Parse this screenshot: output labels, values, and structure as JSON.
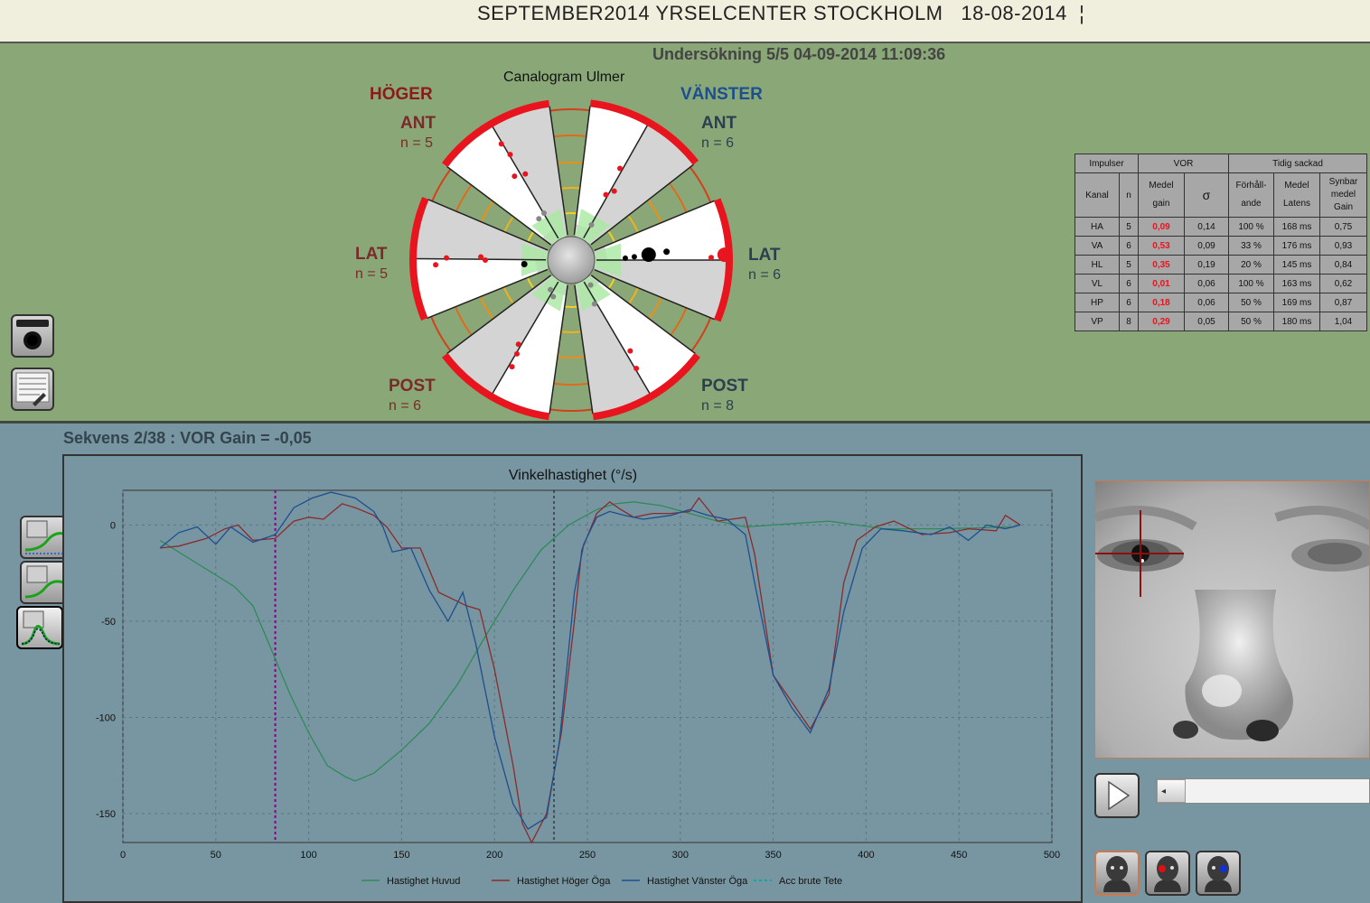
{
  "title_bar": {
    "text": "SEPTEMBER2014 YRSELCENTER STOCKHOLM   18-08-2014  ¦"
  },
  "exam": {
    "text": "Undersökning 5/5 04-09-2014 11:09:36"
  },
  "canalogram": {
    "title": "Canalogram Ulmer",
    "right_side": "HÖGER",
    "left_side": "VÄNSTER",
    "sectors": {
      "right_ant": {
        "label": "ANT",
        "n": "n = 5"
      },
      "right_lat": {
        "label": "LAT",
        "n": "n = 5"
      },
      "right_post": {
        "label": "POST",
        "n": "n = 6"
      },
      "left_ant": {
        "label": "ANT",
        "n": "n = 6"
      },
      "left_lat": {
        "label": "LAT",
        "n": "n = 6"
      },
      "left_post": {
        "label": "POST",
        "n": "n = 8"
      }
    }
  },
  "stats_table": {
    "group_headers": [
      "Impulser",
      "VOR",
      "Tidig sackad"
    ],
    "headers": {
      "kanal": "Kanal",
      "n": "n",
      "medel_gain": "Medel gain",
      "sigma": "σ",
      "forhallande": "Förhåll- ande",
      "latens": "Medel Latens",
      "synbar": "Synbar medel Gain"
    },
    "rows": [
      [
        "HA",
        "5",
        "0,09",
        "0,14",
        "100 %",
        "168 ms",
        "0,75"
      ],
      [
        "VA",
        "6",
        "0,53",
        "0,09",
        "33 %",
        "176 ms",
        "0,93"
      ],
      [
        "HL",
        "5",
        "0,35",
        "0,19",
        "20 %",
        "145 ms",
        "0,84"
      ],
      [
        "VL",
        "6",
        "0,01",
        "0,06",
        "100 %",
        "163 ms",
        "0,62"
      ],
      [
        "HP",
        "6",
        "0,18",
        "0,06",
        "50 %",
        "169 ms",
        "0,87"
      ],
      [
        "VP",
        "8",
        "0,29",
        "0,05",
        "50 %",
        "180 ms",
        "1,04"
      ]
    ]
  },
  "sequence": {
    "text": "Sekvens 2/38 : VOR Gain = -0,05"
  },
  "chart_data": {
    "type": "line",
    "title": "Vinkelhastighet (°/s)",
    "xlim": [
      0,
      500
    ],
    "ylim": [
      -165,
      18
    ],
    "x_ticks": [
      0,
      50,
      100,
      150,
      200,
      250,
      300,
      350,
      400,
      450,
      500
    ],
    "y_ticks": [
      0,
      -50,
      -100,
      -150
    ],
    "markers": [
      82,
      232
    ],
    "grid": true,
    "legend_position": "bottom",
    "series": [
      {
        "name": "Hastighet Huvud",
        "color": "#2e8b57",
        "style": "solid",
        "points": [
          [
            20,
            -8
          ],
          [
            40,
            -20
          ],
          [
            60,
            -32
          ],
          [
            70,
            -42
          ],
          [
            80,
            -65
          ],
          [
            90,
            -88
          ],
          [
            100,
            -108
          ],
          [
            110,
            -125
          ],
          [
            120,
            -131
          ],
          [
            125,
            -133
          ],
          [
            135,
            -129
          ],
          [
            150,
            -117
          ],
          [
            165,
            -103
          ],
          [
            180,
            -83
          ],
          [
            195,
            -58
          ],
          [
            210,
            -34
          ],
          [
            225,
            -13
          ],
          [
            240,
            0
          ],
          [
            255,
            8
          ],
          [
            265,
            11
          ],
          [
            275,
            12
          ],
          [
            290,
            10
          ],
          [
            305,
            6
          ],
          [
            320,
            2
          ],
          [
            335,
            -1
          ],
          [
            350,
            0
          ],
          [
            365,
            1
          ],
          [
            380,
            2
          ],
          [
            395,
            0
          ],
          [
            410,
            -2
          ],
          [
            440,
            -2
          ],
          [
            480,
            -1
          ]
        ]
      },
      {
        "name": "Hastighet Höger Öga",
        "color": "#8b2a2a",
        "style": "solid",
        "points": [
          [
            20,
            -12
          ],
          [
            30,
            -11
          ],
          [
            45,
            -7
          ],
          [
            55,
            -2
          ],
          [
            62,
            0
          ],
          [
            70,
            -8
          ],
          [
            82,
            -7
          ],
          [
            92,
            2
          ],
          [
            100,
            4
          ],
          [
            108,
            3
          ],
          [
            118,
            11
          ],
          [
            125,
            9
          ],
          [
            135,
            5
          ],
          [
            142,
            -1
          ],
          [
            150,
            -12
          ],
          [
            160,
            -12
          ],
          [
            170,
            -35
          ],
          [
            185,
            -42
          ],
          [
            192,
            -44
          ],
          [
            200,
            -75
          ],
          [
            210,
            -125
          ],
          [
            215,
            -155
          ],
          [
            220,
            -165
          ],
          [
            228,
            -150
          ],
          [
            236,
            -108
          ],
          [
            243,
            -50
          ],
          [
            247,
            -13
          ],
          [
            255,
            6
          ],
          [
            262,
            12
          ],
          [
            268,
            8
          ],
          [
            275,
            4
          ],
          [
            285,
            6
          ],
          [
            295,
            6
          ],
          [
            305,
            7
          ],
          [
            310,
            14
          ],
          [
            320,
            2
          ],
          [
            335,
            4
          ],
          [
            340,
            -15
          ],
          [
            350,
            -78
          ],
          [
            360,
            -92
          ],
          [
            370,
            -106
          ],
          [
            380,
            -88
          ],
          [
            388,
            -30
          ],
          [
            395,
            -8
          ],
          [
            405,
            -1
          ],
          [
            415,
            2
          ],
          [
            430,
            -5
          ],
          [
            445,
            -4
          ],
          [
            455,
            -2
          ],
          [
            470,
            -3
          ],
          [
            475,
            5
          ],
          [
            483,
            0
          ]
        ]
      },
      {
        "name": "Hastighet Vänster Öga",
        "color": "#1c4f8f",
        "style": "solid",
        "points": [
          [
            20,
            -12
          ],
          [
            30,
            -4
          ],
          [
            40,
            -1
          ],
          [
            50,
            -10
          ],
          [
            58,
            -1
          ],
          [
            70,
            -9
          ],
          [
            82,
            -5
          ],
          [
            92,
            9
          ],
          [
            102,
            14
          ],
          [
            112,
            17
          ],
          [
            125,
            14
          ],
          [
            135,
            7
          ],
          [
            140,
            -1
          ],
          [
            145,
            -14
          ],
          [
            155,
            -12
          ],
          [
            165,
            -34
          ],
          [
            175,
            -50
          ],
          [
            183,
            -35
          ],
          [
            190,
            -62
          ],
          [
            200,
            -110
          ],
          [
            210,
            -145
          ],
          [
            218,
            -158
          ],
          [
            228,
            -152
          ],
          [
            235,
            -112
          ],
          [
            243,
            -35
          ],
          [
            248,
            -10
          ],
          [
            255,
            4
          ],
          [
            262,
            7
          ],
          [
            270,
            5
          ],
          [
            280,
            3
          ],
          [
            295,
            5
          ],
          [
            305,
            8
          ],
          [
            315,
            5
          ],
          [
            325,
            3
          ],
          [
            335,
            -5
          ],
          [
            340,
            -30
          ],
          [
            350,
            -78
          ],
          [
            360,
            -95
          ],
          [
            370,
            -108
          ],
          [
            380,
            -85
          ],
          [
            388,
            -45
          ],
          [
            398,
            -12
          ],
          [
            408,
            -2
          ],
          [
            420,
            -3
          ],
          [
            435,
            -5
          ],
          [
            445,
            -1
          ],
          [
            455,
            -8
          ],
          [
            465,
            0
          ],
          [
            475,
            -2
          ],
          [
            483,
            0
          ]
        ]
      },
      {
        "name": "Acc brute Tete",
        "color": "#00a0a0",
        "style": "dashed",
        "points": []
      }
    ]
  }
}
